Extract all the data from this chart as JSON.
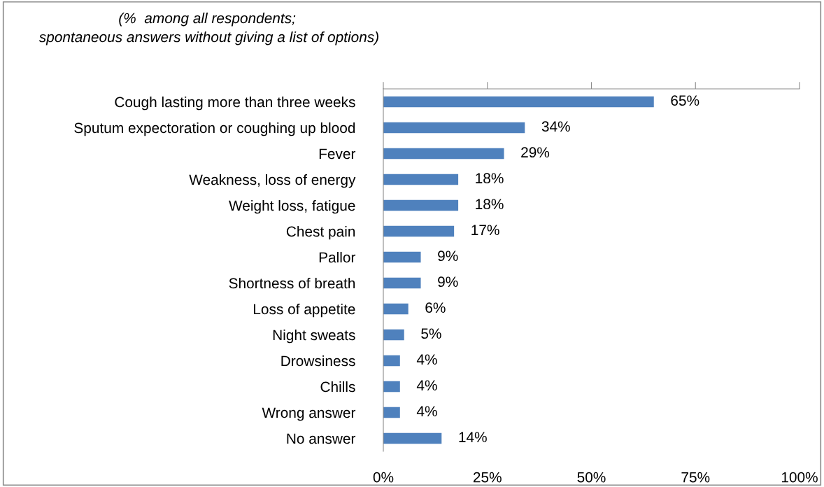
{
  "chart_data": {
    "type": "bar",
    "orientation": "horizontal",
    "title": "(%  among all respondents;\n spontaneous answers without giving a list of options)",
    "categories": [
      "Cough lasting more than three weeks",
      "Sputum expectoration or coughing up blood",
      "Fever",
      "Weakness, loss of energy",
      "Weight loss, fatigue",
      "Chest pain",
      "Pallor",
      "Shortness of breath",
      "Loss of appetite",
      "Night sweats",
      "Drowsiness",
      "Chills",
      "Wrong answer",
      "No answer"
    ],
    "values": [
      65,
      34,
      29,
      18,
      18,
      17,
      9,
      9,
      6,
      5,
      4,
      4,
      4,
      14
    ],
    "value_labels": [
      "65%",
      "34%",
      "29%",
      "18%",
      "18%",
      "17%",
      "9%",
      "9%",
      "6%",
      "5%",
      "4%",
      "4%",
      "4%",
      "14%"
    ],
    "color": "#4f81bd",
    "xlim": [
      0,
      100
    ],
    "xticks": [
      {
        "value": 0,
        "label": "0%"
      },
      {
        "value": 25,
        "label": "25%"
      },
      {
        "value": 50,
        "label": "50%"
      },
      {
        "value": 75,
        "label": "75%"
      },
      {
        "value": 100,
        "label": "100%"
      }
    ],
    "grid": false,
    "legend": false
  }
}
